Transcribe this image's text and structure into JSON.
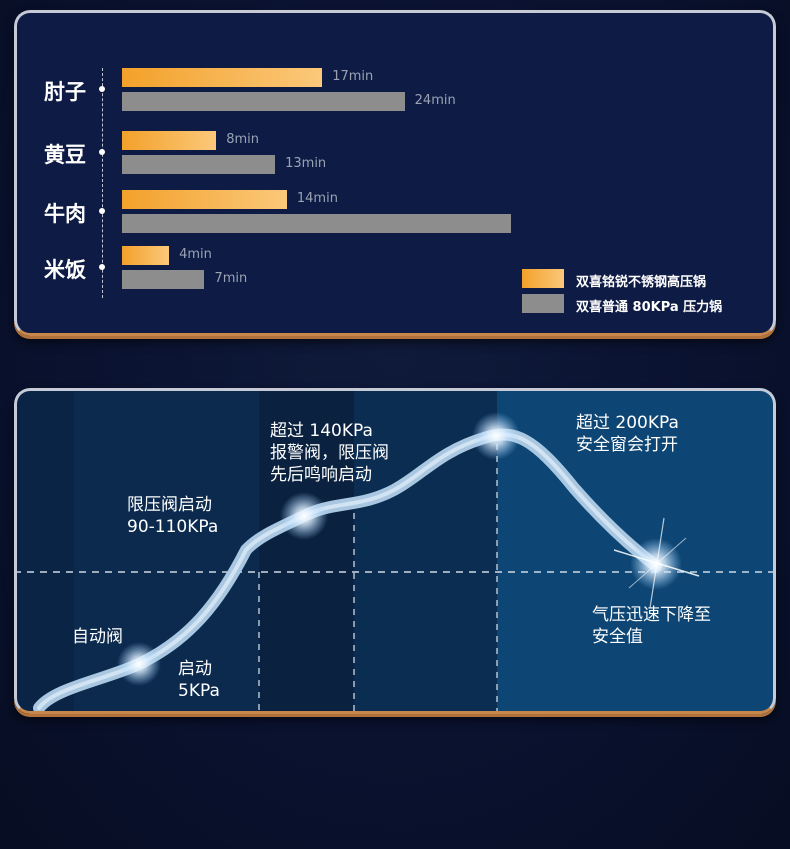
{
  "chart_data": {
    "type": "bar",
    "orientation": "horizontal",
    "categories": [
      "肘子",
      "黄豆",
      "牛肉",
      "米饭"
    ],
    "series": [
      {
        "name": "双喜铭锐不锈钢高压锅",
        "values": [
          17,
          8,
          14,
          4
        ],
        "labels": [
          "17min",
          "8min",
          "14min",
          "4min"
        ]
      },
      {
        "name": "双喜普通 80KPa 压力锅",
        "values": [
          24,
          13,
          33,
          7
        ],
        "labels": [
          "24min",
          "13min",
          "",
          "7min"
        ]
      }
    ],
    "unit": "min",
    "xlim": [
      0,
      36
    ],
    "colors": {
      "series1": "#f3a12a",
      "series2": "#8d8d8d"
    },
    "legend_position": "bottom-right",
    "grid": false
  },
  "pressure_diagram": {
    "stages": [
      {
        "id": "auto-valve",
        "text": [
          "自动阀"
        ]
      },
      {
        "id": "start-5kpa",
        "text": [
          "启动",
          "5KPa"
        ]
      },
      {
        "id": "limit-valve",
        "text": [
          "限压阀启动",
          "90-110KPa"
        ]
      },
      {
        "id": "over-140",
        "text": [
          "超过 140KPa",
          "报警阀，限压阀",
          "先后鸣响启动"
        ]
      },
      {
        "id": "over-200",
        "text": [
          "超过 200KPa",
          "安全窗会打开"
        ]
      },
      {
        "id": "drop",
        "text": [
          "气压迅速下降至",
          "安全值"
        ]
      }
    ],
    "colors": {
      "curve": "#b8d4ea",
      "band_light": "#0d4a78",
      "band_dark": "#0a2a4e"
    }
  }
}
